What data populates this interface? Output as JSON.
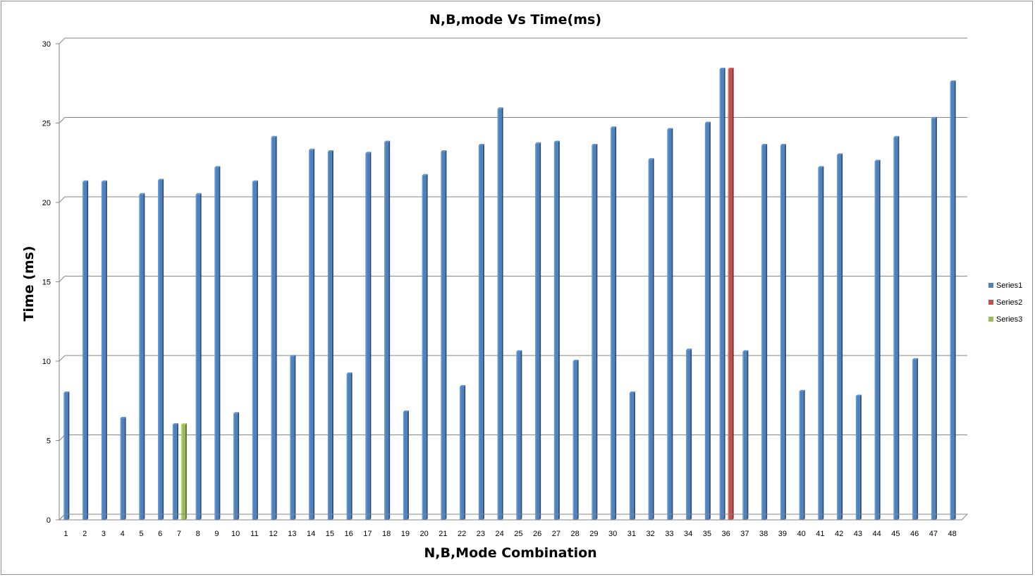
{
  "chart_data": {
    "type": "bar",
    "title": "N,B,mode Vs Time(ms)",
    "xlabel": "N,B,Mode Combination",
    "ylabel": "Time (ms)",
    "ylim": [
      0,
      30
    ],
    "yticks": [
      0,
      5,
      10,
      15,
      20,
      25,
      30
    ],
    "grid": true,
    "legend_position": "right",
    "categories": [
      "1",
      "2",
      "3",
      "4",
      "5",
      "6",
      "7",
      "8",
      "9",
      "10",
      "11",
      "12",
      "13",
      "14",
      "15",
      "16",
      "17",
      "18",
      "19",
      "20",
      "21",
      "22",
      "23",
      "24",
      "25",
      "26",
      "27",
      "28",
      "29",
      "30",
      "31",
      "32",
      "33",
      "34",
      "35",
      "36",
      "37",
      "38",
      "39",
      "40",
      "41",
      "42",
      "43",
      "44",
      "45",
      "46",
      "47",
      "48"
    ],
    "series": [
      {
        "name": "Series1",
        "color": "#4f81bd",
        "values": [
          8.0,
          21.3,
          21.3,
          6.4,
          20.5,
          21.4,
          6.0,
          20.5,
          22.2,
          6.7,
          21.3,
          24.1,
          10.3,
          23.3,
          23.2,
          9.2,
          23.1,
          23.8,
          6.8,
          21.7,
          23.2,
          8.4,
          23.6,
          25.9,
          10.6,
          23.7,
          23.8,
          10.0,
          23.6,
          24.7,
          8.0,
          22.7,
          24.6,
          10.7,
          25.0,
          28.4,
          10.6,
          23.6,
          23.6,
          8.1,
          22.2,
          23.0,
          7.8,
          22.6,
          24.1,
          10.1,
          25.3,
          27.6
        ]
      },
      {
        "name": "Series2",
        "color": "#c0504d",
        "values": [
          null,
          null,
          null,
          null,
          null,
          null,
          null,
          null,
          null,
          null,
          null,
          null,
          null,
          null,
          null,
          null,
          null,
          null,
          null,
          null,
          null,
          null,
          null,
          null,
          null,
          null,
          null,
          null,
          null,
          null,
          null,
          null,
          null,
          null,
          null,
          28.4,
          null,
          null,
          null,
          null,
          null,
          null,
          null,
          null,
          null,
          null,
          null,
          null
        ]
      },
      {
        "name": "Series3",
        "color": "#9bbb59",
        "values": [
          null,
          null,
          null,
          null,
          null,
          null,
          6.0,
          null,
          null,
          null,
          null,
          null,
          null,
          null,
          null,
          null,
          null,
          null,
          null,
          null,
          null,
          null,
          null,
          null,
          null,
          null,
          null,
          null,
          null,
          null,
          null,
          null,
          null,
          null,
          null,
          null,
          null,
          null,
          null,
          null,
          null,
          null,
          null,
          null,
          null,
          null,
          null,
          null
        ]
      }
    ]
  }
}
